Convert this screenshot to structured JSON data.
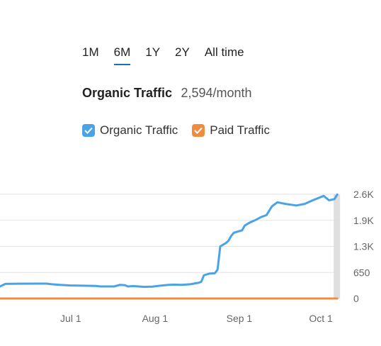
{
  "range_tabs": [
    {
      "label": "1M",
      "active": false
    },
    {
      "label": "6M",
      "active": true
    },
    {
      "label": "1Y",
      "active": false
    },
    {
      "label": "2Y",
      "active": false
    },
    {
      "label": "All time",
      "active": false
    }
  ],
  "headline": {
    "title": "Organic Traffic",
    "value": "2,594/month"
  },
  "legend": {
    "organic": {
      "label": "Organic Traffic",
      "color": "#4aa3e4",
      "checked": true
    },
    "paid": {
      "label": "Paid Traffic",
      "color": "#f08c42",
      "checked": true
    }
  },
  "colors": {
    "grid": "#e3e3e3",
    "axis_text": "#666666",
    "highlight_bar": "#d9d9d9"
  },
  "chart_data": {
    "type": "line",
    "x_type": "date",
    "x_ticks": [
      {
        "date": "2024-07-01",
        "label": "Jul 1"
      },
      {
        "date": "2024-08-01",
        "label": "Aug 1"
      },
      {
        "date": "2024-09-01",
        "label": "Sep 1"
      },
      {
        "date": "2024-10-01",
        "label": "Oct 1"
      }
    ],
    "y_ticks": [
      {
        "value": 0,
        "label": "0"
      },
      {
        "value": 650,
        "label": "650"
      },
      {
        "value": 1300,
        "label": "1.3K"
      },
      {
        "value": 1950,
        "label": "1.9K"
      },
      {
        "value": 2600,
        "label": "2.6K"
      }
    ],
    "xlim": [
      "2024-06-05",
      "2024-10-08"
    ],
    "ylim": [
      0,
      2600
    ],
    "grid": true,
    "y_axis_position": "right",
    "series": [
      {
        "name": "Organic Traffic",
        "color": "#4aa3e4",
        "points": [
          [
            "2024-06-05",
            300
          ],
          [
            "2024-06-07",
            365
          ],
          [
            "2024-06-12",
            370
          ],
          [
            "2024-06-18",
            372
          ],
          [
            "2024-06-22",
            372
          ],
          [
            "2024-06-24",
            355
          ],
          [
            "2024-06-27",
            340
          ],
          [
            "2024-07-01",
            325
          ],
          [
            "2024-07-05",
            320
          ],
          [
            "2024-07-10",
            315
          ],
          [
            "2024-07-12",
            300
          ],
          [
            "2024-07-17",
            300
          ],
          [
            "2024-07-19",
            340
          ],
          [
            "2024-07-21",
            330
          ],
          [
            "2024-07-22",
            300
          ],
          [
            "2024-07-24",
            310
          ],
          [
            "2024-07-26",
            300
          ],
          [
            "2024-07-28",
            290
          ],
          [
            "2024-07-31",
            295
          ],
          [
            "2024-08-03",
            320
          ],
          [
            "2024-08-06",
            340
          ],
          [
            "2024-08-08",
            345
          ],
          [
            "2024-08-11",
            340
          ],
          [
            "2024-08-14",
            355
          ],
          [
            "2024-08-17",
            390
          ],
          [
            "2024-08-18",
            420
          ],
          [
            "2024-08-19",
            580
          ],
          [
            "2024-08-21",
            620
          ],
          [
            "2024-08-23",
            630
          ],
          [
            "2024-08-24",
            720
          ],
          [
            "2024-08-25",
            1300
          ],
          [
            "2024-08-26",
            1340
          ],
          [
            "2024-08-27",
            1380
          ],
          [
            "2024-08-28",
            1440
          ],
          [
            "2024-08-29",
            1560
          ],
          [
            "2024-08-30",
            1640
          ],
          [
            "2024-08-31",
            1660
          ],
          [
            "2024-09-02",
            1700
          ],
          [
            "2024-09-03",
            1820
          ],
          [
            "2024-09-05",
            1900
          ],
          [
            "2024-09-07",
            1960
          ],
          [
            "2024-09-09",
            2030
          ],
          [
            "2024-09-11",
            2080
          ],
          [
            "2024-09-13",
            2300
          ],
          [
            "2024-09-15",
            2400
          ],
          [
            "2024-09-18",
            2360
          ],
          [
            "2024-09-22",
            2320
          ],
          [
            "2024-09-25",
            2360
          ],
          [
            "2024-09-28",
            2450
          ],
          [
            "2024-10-02",
            2560
          ],
          [
            "2024-10-04",
            2450
          ],
          [
            "2024-10-06",
            2480
          ],
          [
            "2024-10-07",
            2594
          ]
        ]
      },
      {
        "name": "Paid Traffic",
        "color": "#f08c42",
        "points": [
          [
            "2024-06-05",
            0
          ],
          [
            "2024-10-07",
            0
          ]
        ]
      }
    ]
  }
}
